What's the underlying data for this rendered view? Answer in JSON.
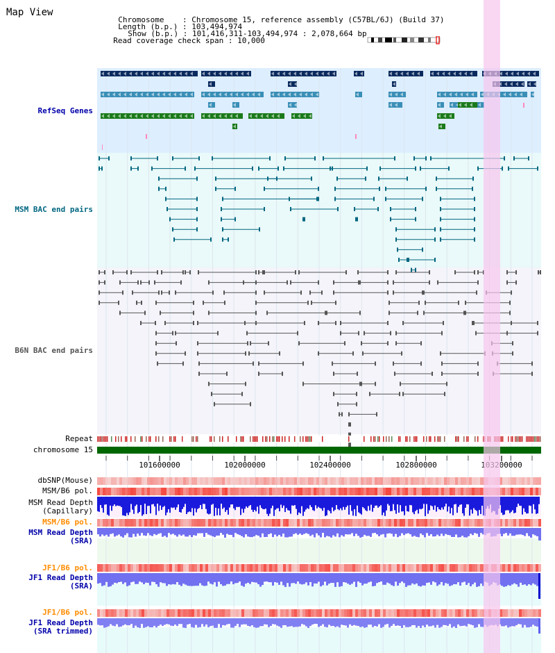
{
  "page": {
    "title": "Map View"
  },
  "header": {
    "chromosome_label": "Chromosome",
    "chromosome_value": "Chromosome 15, reference assembly (C57BL/6J) (Build 37)",
    "length_label": "Length (b.p.)",
    "length_value": "103,494,974",
    "show_label": "Show (b.p.)",
    "show_value": "101,416,311-103,494,974 : 2,078,664 bp",
    "span_label": "Read coverage check span",
    "span_value": "10,000"
  },
  "tracks": {
    "refseq": {
      "label": "RefSeq Genes",
      "color": "#0000aa"
    },
    "msm_bac": {
      "label": "MSM BAC end pairs",
      "color": "#006680"
    },
    "b6n_bac": {
      "label": "B6N BAC end pairs",
      "color": "#555555"
    },
    "repeat": {
      "label": "Repeat"
    },
    "chromosome": {
      "label": "chromosome 15"
    },
    "dbsnp": {
      "label": "dbSNP(Mouse)"
    },
    "msm_b6_pol_1": {
      "label": "MSM/B6 pol."
    },
    "msm_depth_cap": {
      "label": "MSM Read Depth",
      "label2": "(Capillary)"
    },
    "msm_b6_pol_2": {
      "label": "MSM/B6 pol.",
      "color": "#ff8c00"
    },
    "msm_depth_sra": {
      "label": "MSM Read Depth",
      "label2": "(SRA)",
      "color": "#0000aa"
    },
    "jf1_b6_pol_1": {
      "label": "JF1/B6 pol.",
      "color": "#ff8c00"
    },
    "jf1_depth_sra": {
      "label": "JF1 Read Depth",
      "label2": "(SRA)",
      "color": "#0000aa"
    },
    "jf1_b6_pol_2": {
      "label": "JF1/B6 pol.",
      "color": "#ff8c00"
    },
    "jf1_depth_trim": {
      "label": "JF1 Read Depth",
      "label2": "(SRA trimmed)",
      "color": "#0000aa"
    }
  },
  "axis": {
    "ticks": [
      "101600000",
      "102000000",
      "102400000",
      "102800000",
      "103200000"
    ]
  },
  "colors": {
    "refseq_bg": "#ddeeff",
    "bac_bg": "#eaf9f9",
    "b6n_bg": "#f4f4fa",
    "highlight": "#f7c6ee",
    "chrom_bar": "#006600",
    "depth_blue": "#1a1adc",
    "depth_light": "#7070f0",
    "pol_red": "#ee2222"
  }
}
